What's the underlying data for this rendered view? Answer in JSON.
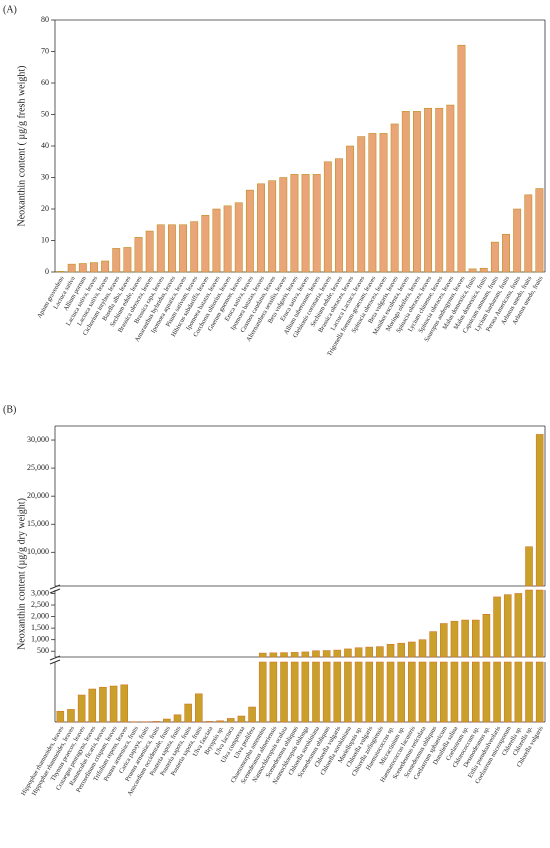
{
  "chart_data": [
    {
      "type": "bar",
      "title": "(A)",
      "y_label": "Neoxanthin content ( µg/g fresh weight)",
      "color": "#e9a577",
      "edge": "#b8860b",
      "categories": [
        "Apium graveolens",
        "Lactuca sativa",
        "Allium porrum",
        "Lactuca sativa, leaves",
        "Lactuca sativa, leaves",
        "Cichorium intybus, leaves",
        "Basella alba, leaves",
        "Sechium edule, leaves",
        "Brassica oleracea, leaves",
        "Brassica rapa, leaves",
        "Amaranthus hybridus, leaves",
        "Ipomoea aquatica, leaves",
        "Pisum sativum, leaves",
        "Hibiscus sabdariffa, leaves",
        "Ipomoea batatas, leaves",
        "Corchorus olitorius, leaves",
        "Gnetum gnemon, leaves",
        "Eruca sativa, leaves",
        "Ipomoea batatas, leaves",
        "Cosmos caudatus, leaves",
        "Alternanthera sessilis, leaves",
        "Beta vulgaris, leaves",
        "Eruca sativa, leaves",
        "Allium tuberosum, leaves",
        "Glebionis coronaria, leaves",
        "Sechium edule, leaves",
        "Brassica oleracea, leaves",
        "Lactuca Lactuca, leaves",
        "Trigonella foenum-graecum, leaves",
        "Spinacia oleracea, leaves",
        "Beta vulgaris, leaves",
        "Manihot esculenta, leaves",
        "Moringa oleifera, leaves",
        "Spinacia oleracea, leaves",
        "Lycium chinense, leaves",
        "Spinacia oleracea, leaves",
        "Sauropus androgynus, leaves",
        "Malus domestica, fruits",
        "Malus domestica, fruits",
        "Capsicum annuum, fruits",
        "Lycium barbarum, fruits",
        "Persea Americana, fruits",
        "Arbutus unedo, fruits",
        "Arbutus unedo, fruits"
      ],
      "values": [
        0.2,
        2.5,
        2.7,
        3,
        3.5,
        7.5,
        7.8,
        11,
        13,
        15,
        15,
        15,
        16,
        18,
        20,
        21,
        22,
        26,
        28,
        29,
        30,
        31,
        31,
        31,
        35,
        36,
        40,
        43,
        44,
        44,
        47,
        51,
        51,
        52,
        52,
        53,
        72,
        1,
        1.2,
        9.5,
        12,
        20,
        24.5,
        26.5
      ],
      "segments": [
        {
          "ylim": [
            0,
            80
          ],
          "yticks": [
            0,
            10,
            20,
            30,
            40,
            50,
            60,
            70,
            80
          ]
        }
      ]
    },
    {
      "type": "bar",
      "title": "(B)",
      "y_label": "Neoxanthin content (µg/g dry weight)",
      "color": "#c9a02a",
      "edge": "#d2691e",
      "categories": [
        "Hippophae rhamnoides, leaves",
        "Hippophae rhamnoides, leaves",
        "Thymus praecox, leaves",
        "Crataegus pentagyna, leaves",
        "Ranunculus ficaria, leaves",
        "Petroselinum crispum, leaves",
        "Trifolium repens, leaves",
        "Prunus armeniaca, fruits",
        "Carica papaya, fruits",
        "Prunus armeniaca, fruits",
        "Anacardium occidentale, fruits",
        "Pouteria sapota, fruits",
        "Pouteria sapota, fruits",
        "Pouteria sapota, fruits",
        "Ulva fasciata",
        "Bryopsis sp.",
        "Ulva lactuca",
        "Ulva compressa",
        "Ulva prolifera",
        "Chaetomorpha antennina",
        "Scenedesmus almeriensis",
        "Nannochloropsis oculata",
        "Scenedesmus obliquus",
        "Nannochloropsis oblonga",
        "Chlorella sorokiniana",
        "Scenedesmus obliquus",
        "Chlorella vulgaris",
        "Chlorella sorokiniana",
        "Muriellopsis sp.",
        "Chlorella vulgaris",
        "Chlorella zofingiensis",
        "Haematococcus sp.",
        "Micractinium sp.",
        "Haematococcus lacustris",
        "Scenedesmus reticulata",
        "Scenedesmus obliquus",
        "Coelastrum sphaericum",
        "Dunaliella salina",
        "Coelastrum sp.",
        "Chlorococcum sp.",
        "Desmodesmus sp.",
        "Ettlia pseudoalveolaris",
        "Coelastrum microsporum",
        "Chlorella sp.",
        "Chlorella sp.",
        "Chlorella vulgaris"
      ],
      "values": [
        18,
        21,
        45,
        55,
        58,
        60,
        62,
        0.5,
        0.5,
        1,
        5,
        12,
        30,
        47,
        1,
        2,
        6,
        10,
        25,
        420,
        430,
        440,
        450,
        470,
        520,
        530,
        550,
        600,
        650,
        680,
        700,
        800,
        850,
        900,
        1000,
        1350,
        1700,
        1800,
        1850,
        1850,
        2100,
        2850,
        2950,
        3000,
        11000,
        31000
      ],
      "segments": [
        {
          "ylim": [
            0,
            100
          ]
        },
        {
          "ylim": [
            250,
            3150
          ],
          "yticks": [
            500,
            {
              "value": 1000,
              "label": "1,000"
            },
            {
              "value": 1500,
              "label": "1,500"
            },
            {
              "value": 2000,
              "label": "2,000"
            },
            {
              "value": 2500,
              "label": "2,500"
            },
            {
              "value": 3000,
              "label": "3,000"
            }
          ]
        },
        {
          "ylim": [
            4000,
            32500
          ],
          "yticks": [
            {
              "value": 10000,
              "label": "10,000"
            },
            {
              "value": 15000,
              "label": "15,000"
            },
            {
              "value": 20000,
              "label": "20,000"
            },
            {
              "value": 25000,
              "label": "25,000"
            },
            {
              "value": 30000,
              "label": "30,000"
            }
          ]
        }
      ]
    }
  ]
}
